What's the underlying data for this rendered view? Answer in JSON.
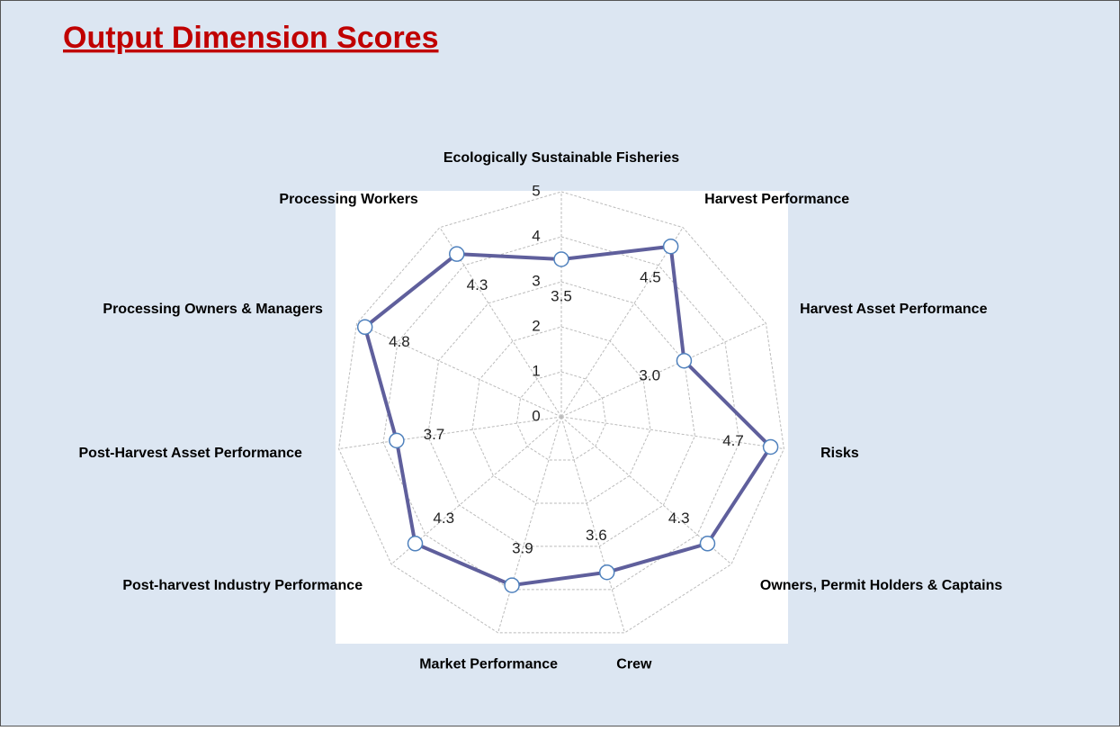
{
  "chart_data": {
    "type": "radar",
    "title": "Output Dimension Scores",
    "categories": [
      "Ecologically Sustainable Fisheries",
      "Harvest  Performance",
      "Harvest Asset Performance",
      "Risks",
      "Owners, Permit Holders & Captains",
      "Crew",
      "Market Performance",
      "Post-harvest Industry Performance",
      "Post-Harvest Asset Performance",
      "Processing Owners & Managers",
      "Processing Workers"
    ],
    "values": [
      3.5,
      4.5,
      3.0,
      4.7,
      4.3,
      3.6,
      3.9,
      4.3,
      3.7,
      4.8,
      4.3
    ],
    "value_labels": [
      "3.5",
      "4.5",
      "3.0",
      "4.7",
      "4.3",
      "3.6",
      "3.9",
      "4.3",
      "3.7",
      "4.8",
      "4.3"
    ],
    "color": "#5f5f9c",
    "ylim": [
      0,
      5
    ],
    "yticks": [
      0,
      1,
      2,
      3,
      4,
      5
    ],
    "grid": true
  }
}
